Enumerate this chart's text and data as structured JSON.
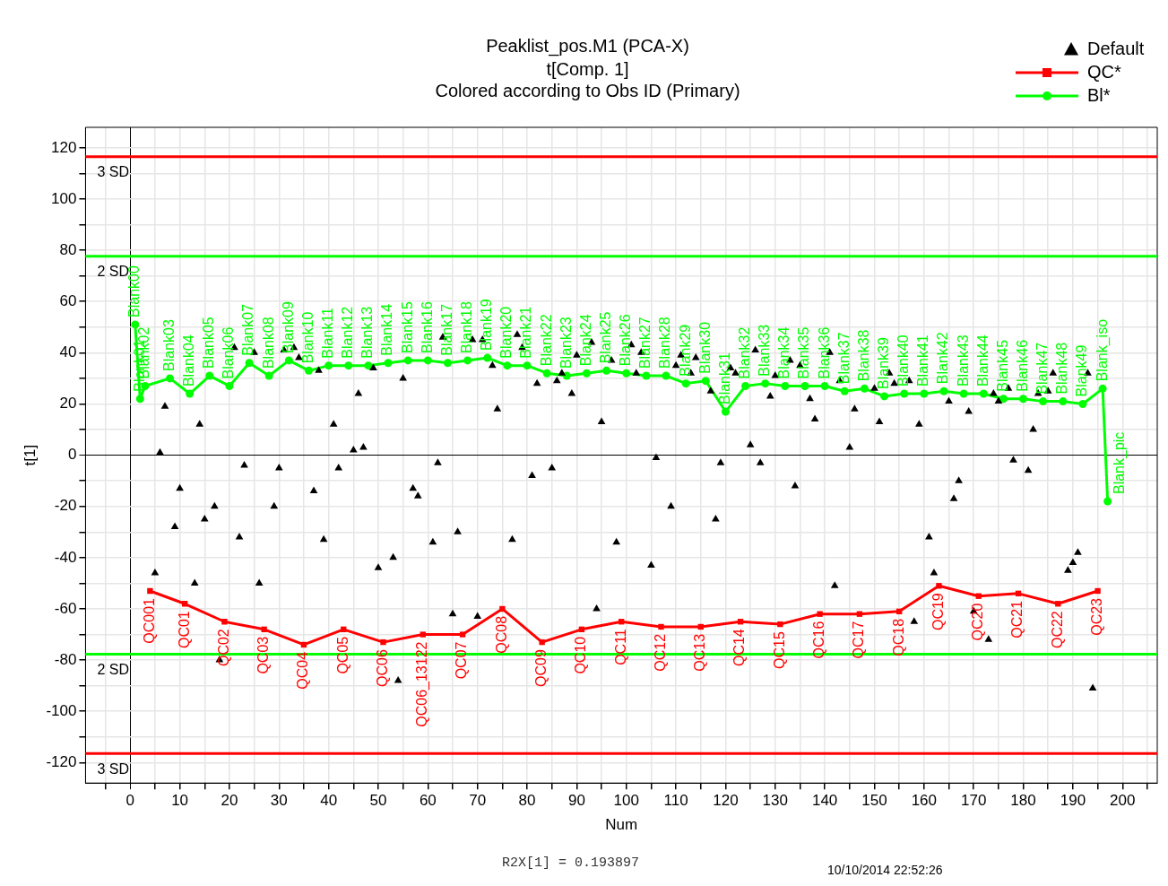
{
  "chart_data": {
    "type": "scatter",
    "title": "Peaklist_pos.M1 (PCA-X)",
    "subtitle": "t[Comp. 1]\nColored according to Obs ID (Primary)",
    "xlabel": "Num",
    "ylabel": "t[1]",
    "xlim": [
      -9,
      207
    ],
    "ylim": [
      -128,
      128
    ],
    "xticks": [
      {
        "value": -5,
        "label": null
      },
      0,
      {
        "value": 5,
        "label": null
      },
      10,
      {
        "value": 15,
        "label": null
      },
      20,
      {
        "value": 25,
        "label": null
      },
      30,
      {
        "value": 35,
        "label": null
      },
      40,
      {
        "value": 45,
        "label": null
      },
      50,
      {
        "value": 55,
        "label": null
      },
      60,
      {
        "value": 65,
        "label": null
      },
      70,
      {
        "value": 75,
        "label": null
      },
      80,
      {
        "value": 85,
        "label": null
      },
      90,
      {
        "value": 95,
        "label": null
      },
      100,
      {
        "value": 105,
        "label": null
      },
      110,
      {
        "value": 115,
        "label": null
      },
      120,
      {
        "value": 125,
        "label": null
      },
      130,
      {
        "value": 135,
        "label": null
      },
      140,
      {
        "value": 145,
        "label": null
      },
      150,
      {
        "value": 155,
        "label": null
      },
      160,
      {
        "value": 165,
        "label": null
      },
      170,
      {
        "value": 175,
        "label": null
      },
      180,
      {
        "value": 185,
        "label": null
      },
      190,
      {
        "value": 195,
        "label": null
      },
      200,
      {
        "value": 205,
        "label": null
      }
    ],
    "yticks": [
      -120,
      {
        "value": -110,
        "label": null
      },
      -100,
      {
        "value": -90,
        "label": null
      },
      -80,
      {
        "value": -70,
        "label": null
      },
      -60,
      {
        "value": -50,
        "label": null
      },
      -40,
      {
        "value": -30,
        "label": null
      },
      -20,
      {
        "value": -10,
        "label": null
      },
      0,
      {
        "value": 10,
        "label": null
      },
      20,
      {
        "value": 30,
        "label": null
      },
      40,
      {
        "value": 50,
        "label": null
      },
      60,
      {
        "value": 70,
        "label": null
      },
      80,
      {
        "value": 90,
        "label": null
      },
      100,
      {
        "value": 110,
        "label": null
      },
      120
    ],
    "grid": true,
    "legend": "top right",
    "series": [
      {
        "type": "scatter",
        "name": "Default",
        "color": "#000000",
        "marker": "triangle",
        "x": [
          5,
          6,
          7,
          9,
          10,
          13,
          14,
          15,
          17,
          18,
          21,
          22,
          23,
          25,
          26,
          29,
          30,
          31,
          33,
          34,
          37,
          38,
          39,
          41,
          42,
          45,
          46,
          47,
          49,
          50,
          53,
          54,
          55,
          57,
          58,
          61,
          62,
          63,
          65,
          66,
          69,
          70,
          71,
          73,
          74,
          77,
          78,
          79,
          81,
          82,
          85,
          86,
          87,
          89,
          90,
          93,
          94,
          95,
          97,
          98,
          101,
          102,
          103,
          105,
          106,
          109,
          110,
          111,
          113,
          114,
          117,
          118,
          119,
          121,
          122,
          125,
          126,
          127,
          129,
          130,
          133,
          134,
          135,
          137,
          138,
          141,
          142,
          143,
          145,
          146,
          150,
          151,
          153,
          154,
          157,
          158,
          159,
          161,
          162,
          165,
          166,
          167,
          169,
          170,
          173,
          174,
          175,
          177,
          178,
          181,
          182,
          183,
          185,
          186,
          189,
          190,
          191,
          193,
          194
        ],
        "values": [
          -46,
          1,
          19,
          -28,
          -13,
          -50,
          12,
          -25,
          -20,
          -80,
          42,
          -32,
          -4,
          40,
          -50,
          -20,
          -5,
          41,
          42,
          38,
          -14,
          33,
          -33,
          12,
          -5,
          2,
          24,
          3,
          34,
          -44,
          -40,
          -88,
          30,
          -13,
          -16,
          -34,
          -3,
          46,
          -62,
          -30,
          45,
          -63,
          45,
          35,
          18,
          -33,
          47,
          42,
          -8,
          28,
          -5,
          29,
          32,
          24,
          39,
          44,
          -60,
          13,
          37,
          -34,
          43,
          32,
          40,
          -43,
          -1,
          -20,
          35,
          39,
          32,
          38,
          25,
          -25,
          -3,
          34,
          32,
          4,
          41,
          -3,
          23,
          31,
          37,
          -12,
          35,
          22,
          14,
          40,
          -51,
          29,
          3,
          18,
          26,
          13,
          32,
          28,
          29,
          -65,
          12,
          -32,
          -46,
          21,
          -17,
          -10,
          17,
          -61,
          -72,
          24,
          21,
          26,
          -2,
          -6,
          10,
          24,
          25,
          32,
          -45,
          -42,
          -38,
          32,
          -91
        ]
      },
      {
        "type": "line",
        "name": "QC*",
        "color": "#ff0000",
        "marker": "square",
        "x": [
          4,
          11,
          19,
          27,
          35,
          43,
          51,
          59,
          67,
          75,
          83,
          91,
          99,
          107,
          115,
          123,
          131,
          139,
          147,
          155,
          163,
          171,
          179,
          187,
          195
        ],
        "values": [
          -53,
          -58,
          -65,
          -68,
          -74,
          -68,
          -73,
          -70,
          -70,
          -60,
          -73,
          -68,
          -65,
          -67,
          -67,
          -65,
          -66,
          -62,
          -62,
          -61,
          -51,
          -55,
          -54,
          -58,
          -53
        ],
        "value_labels": [
          "QC001",
          "QC01",
          "QC02",
          "QC03",
          "QC04",
          "QC05",
          "QC06",
          "QC06_13122",
          "QC07",
          "QC08",
          "QC09",
          "QC10",
          "QC11",
          "QC12",
          "QC13",
          "QC14",
          "QC15",
          "QC16",
          "QC17",
          "QC18",
          "QC19",
          "QC20",
          "QC21",
          "QC22",
          "QC23"
        ]
      },
      {
        "type": "line",
        "name": "Bl*",
        "color": "#00ff00",
        "marker": "circle",
        "x": [
          1,
          2,
          3,
          8,
          12,
          16,
          20,
          24,
          28,
          32,
          36,
          40,
          44,
          48,
          52,
          56,
          60,
          64,
          68,
          72,
          76,
          80,
          84,
          88,
          92,
          96,
          100,
          104,
          108,
          112,
          116,
          120,
          124,
          128,
          132,
          136,
          140,
          144,
          148,
          152,
          156,
          160,
          164,
          168,
          172,
          176,
          180,
          184,
          188,
          192,
          196,
          197
        ],
        "values": [
          51,
          22,
          27,
          30,
          24,
          31,
          27,
          36,
          31,
          37,
          33,
          35,
          35,
          35,
          36,
          37,
          37,
          36,
          37,
          38,
          35,
          35,
          32,
          31,
          32,
          33,
          32,
          31,
          31,
          28,
          29,
          17,
          27,
          28,
          27,
          27,
          27,
          25,
          26,
          23,
          24,
          24,
          25,
          24,
          24,
          22,
          22,
          21,
          21,
          20,
          26,
          -18
        ],
        "value_labels": [
          "Blank00",
          "Blank01",
          "Blank02",
          "Blank03",
          "Blank04",
          "Blank05",
          "Blank06",
          "Blank07",
          "Blank08",
          "Blank09",
          "Blank10",
          "Blank11",
          "Blank12",
          "Blank13",
          "Blank14",
          "Blank15",
          "Blank16",
          "Blank17",
          "Blank18",
          "Blank19",
          "Blank20",
          "Blank21",
          "Blank22",
          "Blank23",
          "Blank24",
          "Blank25",
          "Blank26",
          "Blank27",
          "Blank28",
          "Blank29",
          "Blank30",
          "Blank31",
          "Blank32",
          "Blank33",
          "Blank34",
          "Blank35",
          "Blank36",
          "Blank37",
          "Blank38",
          "Blank39",
          "Blank40",
          "Blank41",
          "Blank42",
          "Blank43",
          "Blank44",
          "Blank45",
          "Blank46",
          "Blank47",
          "Blank48",
          "Blank49",
          "Blank_iso",
          "Blank_pic"
        ]
      }
    ],
    "ref_lines": [
      {
        "axis": "y",
        "value": 116.5,
        "label": "3 SD",
        "color": "#ff0000"
      },
      {
        "axis": "y",
        "value": 77.7,
        "label": "2 SD",
        "color": "#00ff00"
      },
      {
        "axis": "y",
        "value": -77.7,
        "label": "2 SD",
        "color": "#00ff00"
      },
      {
        "axis": "y",
        "value": -116.5,
        "label": "3 SD",
        "color": "#ff0000"
      }
    ],
    "annotations": [
      "R2X[1] = 0.193897",
      "10/10/2014 22:52:26"
    ]
  }
}
